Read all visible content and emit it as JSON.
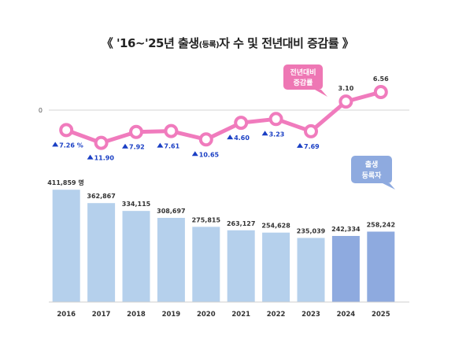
{
  "title": {
    "prefix": "《  '16~'25년  출생",
    "small": "(등록)",
    "suffix": "자  수  및  전년대비  증감률  》"
  },
  "chart_data": {
    "type": "bar+line",
    "categories": [
      "2016",
      "2017",
      "2018",
      "2019",
      "2020",
      "2021",
      "2022",
      "2023",
      "2024",
      "2025"
    ],
    "bars": {
      "name_lines": [
        "출생",
        "등록자"
      ],
      "unit": "명",
      "values": [
        411859,
        362867,
        334115,
        308697,
        275815,
        263127,
        254628,
        235039,
        242334,
        258242
      ],
      "labels": [
        "411,859",
        "362,867",
        "334,115",
        "308,697",
        "275,815",
        "263,127",
        "254,628",
        "235,039",
        "242,334",
        "258,242"
      ],
      "colors": [
        "#b5d0ec",
        "#b5d0ec",
        "#b5d0ec",
        "#b5d0ec",
        "#b5d0ec",
        "#b5d0ec",
        "#b5d0ec",
        "#b5d0ec",
        "#8eaadf",
        "#8eaadf"
      ]
    },
    "line": {
      "name_lines": [
        "전년대비",
        "증감률"
      ],
      "unit": "%",
      "values": [
        -7.26,
        -11.9,
        -7.92,
        -7.61,
        -10.65,
        -4.6,
        -3.23,
        -7.69,
        3.1,
        6.56
      ],
      "labels": [
        "7.26",
        "11.90",
        "7.92",
        "7.61",
        "10.65",
        "4.60",
        "3.23",
        "7.69",
        "3.10",
        "6.56"
      ],
      "color": "#f07bbd",
      "zero_label": "0"
    },
    "colors": {
      "bar_past": "#b5d0ec",
      "bar_recent": "#8eaadf",
      "line": "#f07bbd",
      "decrease_label": "#1a3fc4",
      "increase_label": "#333333",
      "line_legend_bg": "#ee77b4",
      "bar_legend_bg": "#8eaadf"
    }
  }
}
